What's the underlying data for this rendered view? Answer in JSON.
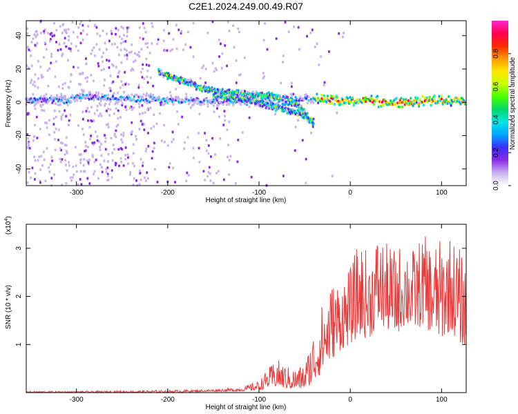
{
  "title": "C2E1.2024.249.00.49.R07",
  "chart_data": [
    {
      "type": "heatmap",
      "xlabel": "Height of straight line (km)",
      "ylabel": "Frequency (Hz)",
      "xlim": [
        -355,
        127
      ],
      "ylim": [
        -50,
        49
      ],
      "xticks": [
        -300,
        -200,
        -100,
        0,
        100
      ],
      "xtick_labels": [
        "-300",
        "-200",
        "-100",
        "0",
        "100"
      ],
      "yticks": [
        -40,
        -20,
        0,
        20,
        40
      ],
      "ytick_labels": [
        "-40",
        "-20",
        "0",
        "20",
        "40"
      ],
      "colorbar": {
        "label": "Normalized spectral amplitude",
        "range": [
          0,
          1
        ],
        "ticks": [
          0.0,
          0.2,
          0.4,
          0.6,
          0.8
        ],
        "tick_labels": [
          "0.0",
          "0.2",
          "0.4",
          "0.6",
          "0.8"
        ],
        "colors": [
          "#ffffff",
          "#c9b3ef",
          "#8b2be6",
          "#3a2dff",
          "#00a2ff",
          "#00e6e6",
          "#00d66b",
          "#46ff00",
          "#c8ff00",
          "#ffe600",
          "#ff9900",
          "#ff2a00",
          "#ff0050",
          "#ff29d0"
        ]
      },
      "features": [
        {
          "name": "carrier",
          "x_range": [
            -355,
            127
          ],
          "freq": [
            1,
            3,
            2,
            1,
            1,
            0,
            2,
            1,
            0,
            1
          ],
          "peak_amplitude": 0.95
        },
        {
          "name": "upper-branch",
          "x": [
            -210,
            -180,
            -160,
            -140,
            -120,
            -90,
            -70,
            -55,
            -45,
            -40
          ],
          "freq": [
            18,
            12,
            8,
            6,
            5,
            4,
            2,
            -3,
            -10,
            -14
          ],
          "peak_amplitude": 0.55
        },
        {
          "name": "lower-branch",
          "x": [
            -150,
            -130,
            -110,
            -90,
            -70,
            -55,
            -45,
            -40
          ],
          "freq": [
            4,
            3,
            2,
            -2,
            -5,
            -7,
            -10,
            -12
          ],
          "peak_amplitude": 0.5
        }
      ],
      "grid": false
    },
    {
      "type": "line",
      "xlabel": "Height of straight line (km)",
      "ylabel": "SNR (10 * v/v)",
      "exponent_label": "(x10",
      "exponent_sup": "4",
      "exponent_close": ")",
      "xlim": [
        -355,
        127
      ],
      "ylim": [
        0,
        3.5
      ],
      "xticks": [
        -300,
        -200,
        -100,
        0,
        100
      ],
      "xtick_labels": [
        "-300",
        "-200",
        "-100",
        "0",
        "100"
      ],
      "yticks": [
        1,
        2,
        3
      ],
      "ytick_labels": [
        "1",
        "2",
        "3"
      ],
      "series": [
        {
          "color": "#e83a3a",
          "envelope_x": [
            -355,
            -300,
            -200,
            -150,
            -120,
            -100,
            -90,
            -80,
            -70,
            -60,
            -50,
            -40,
            -30,
            -20,
            -10,
            0,
            10,
            20,
            30,
            40,
            50,
            60,
            70,
            80,
            90,
            100,
            110,
            120,
            127
          ],
          "envelope_lo": [
            0.0,
            0.0,
            0.0,
            0.02,
            0.03,
            0.05,
            0.1,
            0.12,
            0.08,
            0.06,
            0.08,
            0.2,
            0.45,
            0.7,
            0.9,
            1.0,
            1.2,
            1.1,
            1.4,
            1.3,
            1.2,
            1.4,
            1.3,
            1.4,
            1.2,
            1.1,
            1.3,
            1.0,
            1.0
          ],
          "envelope_hi": [
            0.03,
            0.03,
            0.05,
            0.07,
            0.1,
            0.25,
            0.5,
            0.7,
            0.55,
            0.5,
            0.6,
            1.3,
            1.9,
            2.3,
            2.4,
            2.6,
            3.2,
            2.9,
            3.3,
            3.1,
            3.0,
            3.2,
            3.0,
            3.3,
            3.1,
            3.2,
            3.3,
            3.0,
            2.7
          ]
        }
      ],
      "grid": false
    }
  ]
}
